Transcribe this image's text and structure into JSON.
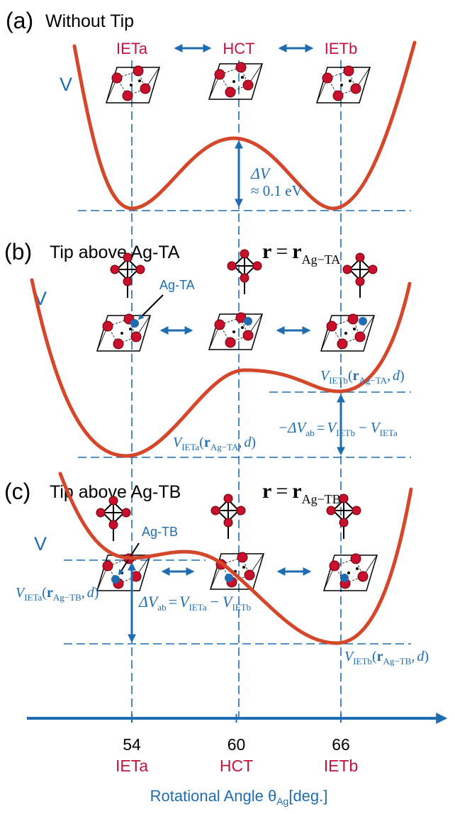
{
  "panels": [
    {
      "label": "(a)",
      "title": "Without Tip",
      "states": [
        "IETa",
        "HCT",
        "IETb"
      ],
      "potential": "V",
      "barrier": "ΔV",
      "barrier_value": "≈ 0.1 eV"
    },
    {
      "label": "(b)",
      "title": "Tip above Ag-TA",
      "position": [
        "r",
        "=",
        "r",
        "Ag−TA"
      ],
      "potential": "V",
      "atom": "Ag-TA",
      "energy_high": [
        "V",
        "IETb",
        "(",
        "r",
        "Ag−TA",
        ",",
        "d",
        ")"
      ],
      "energy_low": [
        "V",
        "IETa",
        "(",
        "r",
        "Ag−TA",
        ",",
        "d",
        ")"
      ],
      "difference": [
        "−ΔV",
        "ab",
        "=",
        "V",
        "IETb",
        "−",
        "V",
        "IETa"
      ]
    },
    {
      "label": "(c)",
      "title": "Tip above Ag-TB",
      "position": [
        "r",
        "=",
        "r",
        "Ag−TB"
      ],
      "potential": "V",
      "atom": "Ag-TB",
      "energy_high": [
        "V",
        "IETa",
        "(",
        "r",
        "Ag−TB",
        ",",
        "d",
        ")"
      ],
      "energy_low": [
        "V",
        "IETb",
        "(",
        "r",
        "Ag−TB",
        ",",
        "d",
        ")"
      ],
      "difference": [
        "ΔV",
        "ab",
        "=",
        "V",
        "IETa",
        "−",
        "V",
        "IETb"
      ]
    }
  ],
  "axis": {
    "ticks": [
      54,
      60,
      66
    ],
    "tick_names": [
      "IETa",
      "HCT",
      "IETb"
    ],
    "label": [
      "Rotational Angle  θ",
      "Ag",
      "[deg.]"
    ]
  }
}
